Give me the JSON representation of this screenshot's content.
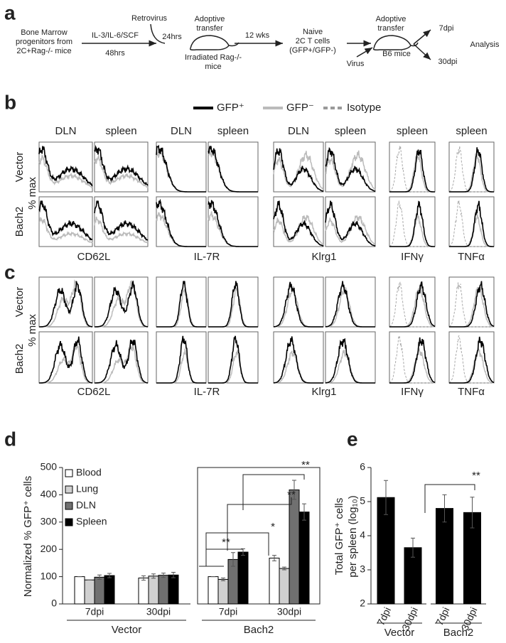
{
  "panel_labels": [
    "a",
    "b",
    "c",
    "d",
    "e"
  ],
  "schematic": {
    "progenitors": [
      "Bone Marrow",
      "progenitors from",
      "2C+Rag-/- mice"
    ],
    "culture": "IL-3/IL-6/SCF",
    "culture_time": "48hrs",
    "retrovirus": "Retrovirus",
    "infection_time": "24hrs",
    "transfer_1": [
      "Adoptive",
      "transfer"
    ],
    "recipient_1": [
      "Irradiated Rag-/-",
      "mice"
    ],
    "wait": "12 wks",
    "cells": [
      "Naive",
      "2C T cells",
      "(GFP+/GFP-)"
    ],
    "transfer_2": [
      "Adoptive",
      "transfer"
    ],
    "recipient_2": "B6 mice",
    "virus": "Virus",
    "timepoints": [
      "7dpi",
      "30dpi"
    ],
    "analysis": "Analysis"
  },
  "histogram_legend": [
    "GFP⁺",
    "GFP⁻",
    "Isotype"
  ],
  "flow_panels": [
    {
      "column_headers": [
        "DLN",
        "spleen",
        "DLN",
        "spleen",
        "DLN",
        "spleen",
        "spleen",
        "spleen"
      ],
      "row_labels": [
        "Vector",
        "Bach2"
      ],
      "y_label": "% max",
      "markers": [
        "CD62L",
        "IL-7R",
        "Klrg1",
        "IFNγ",
        "TNFα"
      ]
    },
    {
      "row_labels": [
        "Vector",
        "Bach2"
      ],
      "y_label": "% max",
      "markers": [
        "CD62L",
        "IL-7R",
        "Klrg1",
        "IFNγ",
        "TNFα"
      ]
    }
  ],
  "chart_data": [
    {
      "type": "bar",
      "y_label": "Normalized % GFP⁺ cells",
      "ylim": [
        0,
        500
      ],
      "yticks": [
        0,
        100,
        200,
        300,
        400,
        500
      ],
      "groups": [
        {
          "name": "Vector",
          "categories": [
            "7dpi",
            "30dpi"
          ]
        },
        {
          "name": "Bach2",
          "categories": [
            "7dpi",
            "30dpi"
          ]
        }
      ],
      "series": [
        {
          "name": "Blood",
          "color": "#ffffff",
          "values": [
            100,
            95,
            100,
            168
          ],
          "errors": [
            0,
            8,
            0,
            10
          ]
        },
        {
          "name": "Lung",
          "color": "#d0d0d0",
          "values": [
            88,
            102,
            90,
            130
          ],
          "errors": [
            0,
            8,
            5,
            5
          ]
        },
        {
          "name": "DLN",
          "color": "#707070",
          "values": [
            98,
            105,
            163,
            418
          ],
          "errors": [
            8,
            8,
            25,
            35
          ]
        },
        {
          "name": "Spleen",
          "color": "#000000",
          "values": [
            104,
            106,
            190,
            337
          ],
          "errors": [
            8,
            10,
            12,
            30
          ]
        }
      ],
      "annotations": [
        "**",
        "*",
        "**",
        "**"
      ]
    },
    {
      "type": "bar",
      "y_label": [
        "Total GFP⁺ cells",
        "per spleen (log₁₀)"
      ],
      "ylim": [
        2,
        6
      ],
      "yticks": [
        2,
        3,
        4,
        5,
        6
      ],
      "groups": [
        {
          "name": "Vector",
          "categories": [
            "7dpi",
            "30dpi"
          ]
        },
        {
          "name": "Bach2",
          "categories": [
            "7dpi",
            "30dpi"
          ]
        }
      ],
      "series": [
        {
          "color": "#000000",
          "values": [
            5.12,
            3.65,
            4.8,
            4.68
          ],
          "errors": [
            0.5,
            0.28,
            0.4,
            0.45
          ]
        }
      ],
      "annotations": [
        "**"
      ]
    }
  ]
}
